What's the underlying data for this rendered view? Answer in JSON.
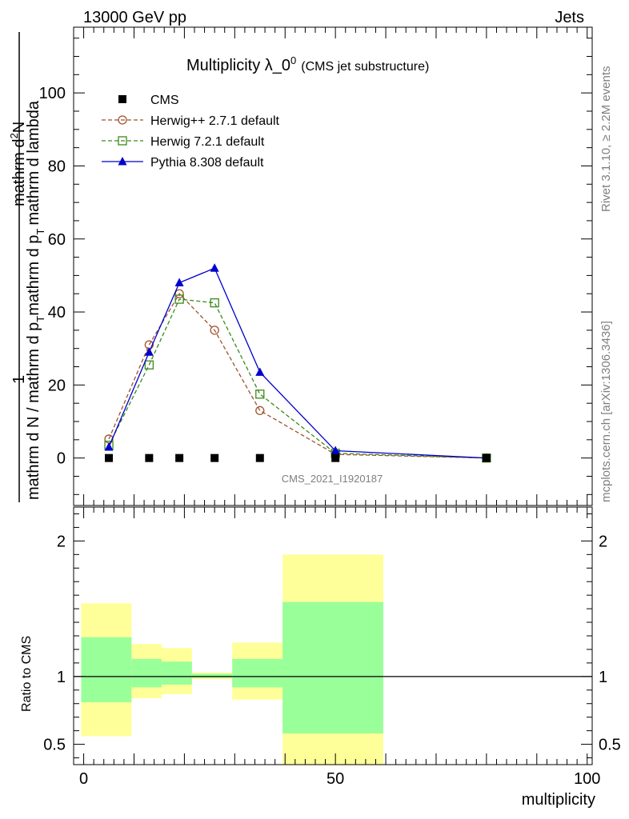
{
  "header": {
    "left": "13000 GeV pp",
    "right": "Jets"
  },
  "title": {
    "main": "Multiplicity λ_0",
    "sup": "0",
    "sub": "(CMS jet substructure)"
  },
  "side_text": {
    "rivet": "Rivet 3.1.10, ≥ 2.2M events",
    "mcplots": "mcplots.cern.ch [arXiv:1306.3436]"
  },
  "watermark": "CMS_2021_I1920187",
  "ylabel_parts": {
    "numerator_one": "1",
    "numerator_main": "mathrm d",
    "numerator_sup": "2",
    "numerator_tail": "N",
    "denominator_main": "mathrm d N / mathrm d p",
    "denominator_sub_T": "T",
    "denominator_mid": "mathrm d p",
    "denominator_sub_T2": "T",
    "denominator_tail": "mathrm d lambda"
  },
  "ratio_ylabel": "Ratio to CMS",
  "xlabel": "multiplicity",
  "chart_data": {
    "type": "line",
    "xlim": [
      -2,
      101
    ],
    "main_ylim": [
      -13,
      118
    ],
    "ratio_ylim": [
      0.35,
      2.25
    ],
    "main_yticks": [
      0,
      20,
      40,
      60,
      80,
      100
    ],
    "ratio_yticks": [
      0.5,
      1,
      2
    ],
    "xticks": [
      0,
      50,
      100
    ],
    "legend_position": "top-left",
    "series": [
      {
        "name": "CMS",
        "style": "data",
        "color": "#000000",
        "marker": "square-filled",
        "x": [
          5,
          13,
          19,
          26,
          35,
          50,
          80
        ],
        "y": [
          0,
          0,
          0,
          0,
          0,
          0,
          0
        ]
      },
      {
        "name": "Herwig++ 2.7.1 default",
        "style": "dashed",
        "color": "#a0522d",
        "marker": "circle-open",
        "x": [
          5,
          13,
          19,
          26,
          35,
          50,
          80
        ],
        "y": [
          5.2,
          31.0,
          45.0,
          35.0,
          13.0,
          1.0,
          0.0
        ]
      },
      {
        "name": "Herwig 7.2.1 default",
        "style": "dashed",
        "color": "#3a8a1a",
        "marker": "square-open",
        "x": [
          5,
          13,
          19,
          26,
          35,
          50,
          80
        ],
        "y": [
          3.5,
          25.5,
          43.5,
          42.5,
          17.5,
          1.3,
          0.0
        ]
      },
      {
        "name": "Pythia 8.308 default",
        "style": "solid",
        "color": "#0000cc",
        "marker": "triangle-filled",
        "x": [
          5,
          13,
          19,
          26,
          35,
          50,
          80
        ],
        "y": [
          3.0,
          29.0,
          48.0,
          52.0,
          23.5,
          2.0,
          0.0
        ]
      }
    ],
    "ratio_bands": [
      {
        "x_from": -0.5,
        "x_to": 9.5,
        "yellow": [
          0.56,
          1.54
        ],
        "green": [
          0.81,
          1.29
        ]
      },
      {
        "x_from": 9.5,
        "x_to": 15.5,
        "yellow": [
          0.84,
          1.24
        ],
        "green": [
          0.92,
          1.13
        ]
      },
      {
        "x_from": 15.5,
        "x_to": 21.5,
        "yellow": [
          0.87,
          1.21
        ],
        "green": [
          0.94,
          1.11
        ]
      },
      {
        "x_from": 21.5,
        "x_to": 29.5,
        "yellow": [
          0.98,
          1.03
        ],
        "green": [
          0.99,
          1.02
        ]
      },
      {
        "x_from": 29.5,
        "x_to": 39.5,
        "yellow": [
          0.83,
          1.25
        ],
        "green": [
          0.92,
          1.13
        ]
      },
      {
        "x_from": 39.5,
        "x_to": 59.5,
        "yellow": [
          0.35,
          1.9
        ],
        "green": [
          0.58,
          1.55
        ]
      }
    ],
    "ratio_reference": 1
  }
}
